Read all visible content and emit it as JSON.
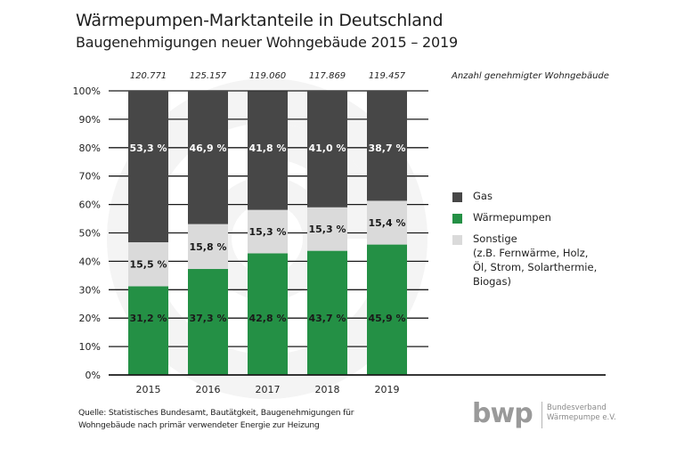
{
  "header": {
    "title": "Wärmepumpen-Marktanteile in Deutschland",
    "subtitle": "Baugenehmigungen neuer Wohngebäude 2015 – 2019"
  },
  "chart_data": {
    "type": "bar",
    "stacked": true,
    "percent_stacked": true,
    "title": "Wärmepumpen-Marktanteile in Deutschland",
    "subtitle": "Baugenehmigungen neuer Wohngebäude 2015 – 2019",
    "categories": [
      "2015",
      "2016",
      "2017",
      "2018",
      "2019"
    ],
    "series": [
      {
        "name": "Wärmepumpen",
        "color": "#249045",
        "label_color": "#1a1a1a",
        "values": [
          31.2,
          37.3,
          42.8,
          43.7,
          45.9
        ],
        "labels": [
          "31,2 %",
          "37,3 %",
          "42,8 %",
          "43,7 %",
          "45,9 %"
        ]
      },
      {
        "name": "Sonstige",
        "color": "#dadada",
        "label_color": "#1a1a1a",
        "values": [
          15.5,
          15.8,
          15.3,
          15.3,
          15.4
        ],
        "labels": [
          "15,5 %",
          "15,8 %",
          "15,3 %",
          "15,3 %",
          "15,4 %"
        ]
      },
      {
        "name": "Gas",
        "color": "#474747",
        "label_color": "#ffffff",
        "values": [
          53.3,
          46.9,
          41.8,
          41.0,
          38.7
        ],
        "labels": [
          "53,3 %",
          "46,9 %",
          "41,8 %",
          "41,0 %",
          "38,7 %"
        ]
      }
    ],
    "totals": {
      "label": "Anzahl genehmigter Wohngebäude",
      "values": [
        "120.771",
        "125.157",
        "119.060",
        "117.869",
        "119.457"
      ]
    },
    "ylim": [
      0,
      100
    ],
    "yticks": [
      "0%",
      "10%",
      "20%",
      "30%",
      "40%",
      "50%",
      "60%",
      "70%",
      "80%",
      "90%",
      "100%"
    ],
    "xlabel": "",
    "ylabel": "",
    "grid": true,
    "legend_position": "right",
    "legend": [
      {
        "name": "Gas",
        "color": "#474747",
        "lines": [
          "Gas"
        ]
      },
      {
        "name": "Wärmepumpen",
        "color": "#249045",
        "lines": [
          "Wärmepumpen"
        ]
      },
      {
        "name": "Sonstige",
        "color": "#dadada",
        "lines": [
          "Sonstige",
          "(z.B. Fernwärme, Holz,",
          "Öl, Strom, Solarthermie,",
          "Biogas)"
        ]
      }
    ]
  },
  "footer": {
    "source_line1": "Quelle: Statistisches Bundesamt, Bautätgkeit, Baugenehmigungen für",
    "source_line2": "Wohngebäude nach primär verwendeter Energie zur Heizung",
    "logo_mark": "bwp",
    "logo_line1": "Bundesverband",
    "logo_line2": "Wärmepumpe e.V."
  }
}
